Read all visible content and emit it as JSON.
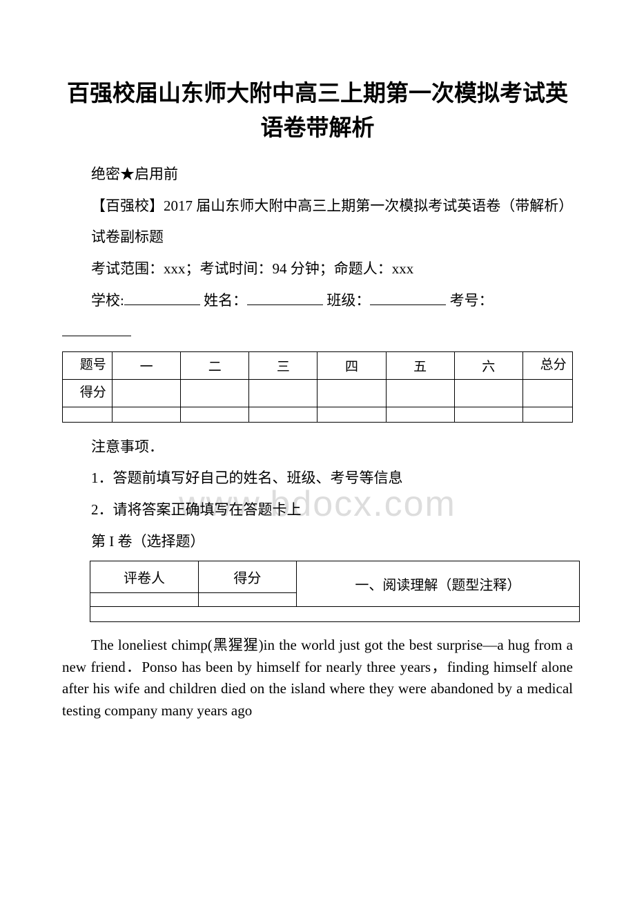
{
  "doc": {
    "title": "百强校届山东师大附中高三上期第一次模拟考试英语卷带解析",
    "secret_line": "绝密★启用前",
    "bracket_line": "【百强校】2017 届山东师大附中高三上期第一次模拟考试英语卷（带解析）",
    "subtitle": "试卷副标题",
    "range_line": "考试范围：xxx；考试时间：94 分钟；命题人：xxx",
    "info_labels": {
      "school": "学校:",
      "name": "姓名：",
      "class": "班级：",
      "examno": "考号："
    },
    "notice_heading": "注意事项．",
    "notice_1": "1．答题前填写好自己的姓名、班级、考号等信息",
    "notice_2": "2．请将答案正确填写在答题卡上",
    "section1": "第 I 卷（选择题）",
    "score_table": {
      "row_label_1": "题号",
      "row_label_2": "得分",
      "cols": [
        "一",
        "二",
        "三",
        "四",
        "五",
        "六"
      ],
      "total_label": "总分"
    },
    "section_table": {
      "col1": "评卷人",
      "col2": "得分",
      "col3": "一、阅读理解（题型注释）"
    },
    "passage": "The loneliest chimp(黑猩猩)in the world just got the best surprise—a hug from a new friend．Ponso has been by himself for nearly three years，finding himself alone after his wife and children died on the island where they were abandoned by a medical testing company many years ago",
    "watermark": "www.bdocx.com",
    "colors": {
      "text": "#000000",
      "background": "#ffffff",
      "watermark": "#dddddd",
      "border": "#000000"
    }
  }
}
